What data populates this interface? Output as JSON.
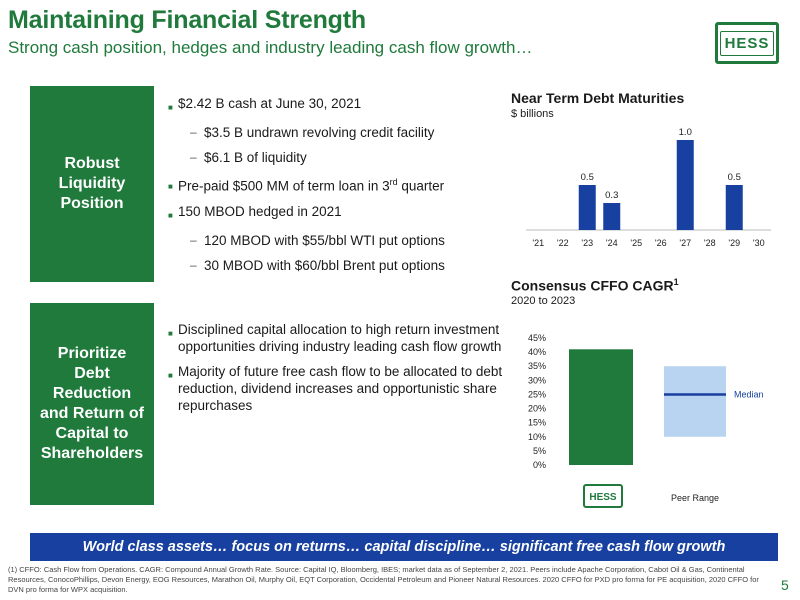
{
  "header": {
    "title": "Maintaining Financial Strength",
    "subtitle": "Strong cash position, hedges and industry leading cash flow growth…",
    "logo_text": "HESS"
  },
  "section1": {
    "label": "Robust\nLiquidity\nPosition",
    "bullets": [
      {
        "level": 1,
        "text": "$2.42 B cash at June 30, 2021"
      },
      {
        "level": 2,
        "text": "$3.5 B undrawn revolving credit facility"
      },
      {
        "level": 2,
        "text": "$6.1 B of liquidity"
      },
      {
        "level": 1,
        "text": "Pre-paid $500 MM of term loan in 3",
        "sup": "rd",
        "after": " quarter"
      },
      {
        "level": 1,
        "text": "150 MBOD hedged in 2021"
      },
      {
        "level": 2,
        "text": "120 MBOD with $55/bbl WTI put options"
      },
      {
        "level": 2,
        "text": "30 MBOD with $60/bbl Brent put options"
      }
    ]
  },
  "section2": {
    "label": "Prioritize\nDebt\nReduction\nand Return of\nCapital to\nShareholders",
    "bullets": [
      {
        "level": 1,
        "text": "Disciplined capital allocation to high return investment opportunities driving industry leading cash flow growth"
      },
      {
        "level": 1,
        "text": "Majority of future free cash flow to be allocated to debt reduction, dividend increases and opportunistic share repurchases"
      }
    ]
  },
  "chart_data": [
    {
      "type": "bar",
      "title": "Near Term Debt Maturities",
      "subtitle": "$ billions",
      "categories": [
        "'21",
        "'22",
        "'23",
        "'24",
        "'25",
        "'26",
        "'27",
        "'28",
        "'29",
        "'30"
      ],
      "values": [
        0,
        0,
        0.5,
        0.3,
        0,
        0,
        1.0,
        0,
        0.5,
        0
      ],
      "data_labels": [
        "",
        "",
        "0.5",
        "0.3",
        "",
        "",
        "1.0",
        "",
        "0.5",
        ""
      ],
      "ylim": [
        0,
        1.0
      ],
      "color": "#1740a0"
    },
    {
      "type": "bar",
      "title": "Consensus CFFO CAGR",
      "title_sup": "1",
      "subtitle": "2020 to 2023",
      "ylim": [
        0,
        45
      ],
      "yticks": [
        "0%",
        "5%",
        "10%",
        "15%",
        "20%",
        "25%",
        "30%",
        "35%",
        "40%",
        "45%"
      ],
      "hess_value": 41,
      "hess_label": "HESS",
      "peer_range": [
        10,
        35
      ],
      "peer_median": 25,
      "peer_label": "Peer Range",
      "median_label": "Median",
      "colors": {
        "hess": "#1f7a3c",
        "range": "#b8d4f0",
        "median": "#1740a0"
      }
    }
  ],
  "banner": "World class assets… focus on returns… capital discipline… significant free cash flow growth",
  "footnote": "(1) CFFO: Cash Flow from Operations. CAGR: Compound Annual Growth Rate. Source: Capital IQ, Bloomberg, IBES; market data as of September 2, 2021. Peers include Apache Corporation, Cabot Oil & Gas, Continental Resources, ConocoPhillips, Devon Energy, EOG Resources, Marathon Oil, Murphy Oil, EQT Corporation, Occidental Petroleum and Pioneer Natural Resources. 2020 CFFO  for PXD pro forma for PE acquisition, 2020 CFFO for DVN pro forma for WPX acquisition.",
  "page_number": "5"
}
